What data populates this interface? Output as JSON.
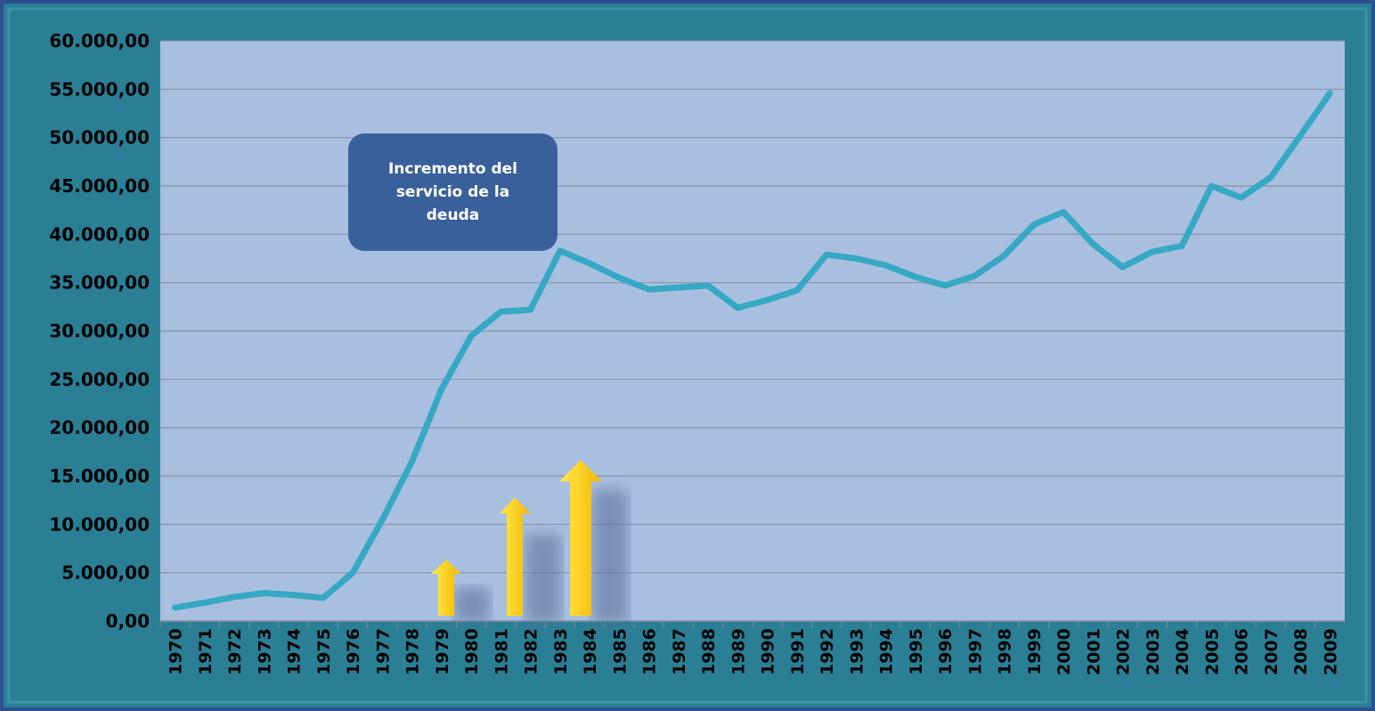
{
  "chart_data": {
    "type": "line",
    "annotation": "Incremento del servicio de la deuda",
    "categories": [
      "1970",
      "1971",
      "1972",
      "1973",
      "1974",
      "1975",
      "1976",
      "1977",
      "1978",
      "1979",
      "1980",
      "1981",
      "1982",
      "1983",
      "1984",
      "1985",
      "1986",
      "1987",
      "1988",
      "1989",
      "1990",
      "1991",
      "1992",
      "1993",
      "1994",
      "1995",
      "1996",
      "1997",
      "1998",
      "1999",
      "2000",
      "2001",
      "2002",
      "2003",
      "2004",
      "2005",
      "2006",
      "2007",
      "2008",
      "2009"
    ],
    "series": [
      {
        "color": "#36a8c4",
        "values": [
          1400,
          1900,
          2500,
          2900,
          2700,
          2400,
          5000,
          10500,
          16500,
          24000,
          29500,
          32000,
          32200,
          38300,
          37000,
          35500,
          34300,
          34500,
          34700,
          32400,
          33200,
          34200,
          37900,
          37500,
          36800,
          35600,
          34700,
          35700,
          37800,
          41000,
          42300,
          39000,
          36600,
          38200,
          38800,
          45000,
          43800,
          45900,
          50200,
          54600
        ]
      }
    ],
    "ylim": [
      0,
      60000
    ],
    "yticks": [
      {
        "value": 0,
        "label": "0,00"
      },
      {
        "value": 5000,
        "label": "5.000,00"
      },
      {
        "value": 10000,
        "label": "10.000,00"
      },
      {
        "value": 15000,
        "label": "15.000,00"
      },
      {
        "value": 20000,
        "label": "20.000,00"
      },
      {
        "value": 25000,
        "label": "25.000,00"
      },
      {
        "value": 30000,
        "label": "30.000,00"
      },
      {
        "value": 35000,
        "label": "35.000,00"
      },
      {
        "value": 40000,
        "label": "40.000,00"
      },
      {
        "value": 45000,
        "label": "45.000,00"
      },
      {
        "value": 50000,
        "label": "50.000,00"
      },
      {
        "value": 55000,
        "label": "55.000,00"
      },
      {
        "value": 60000,
        "label": "60.000,00"
      }
    ],
    "grid": true
  }
}
